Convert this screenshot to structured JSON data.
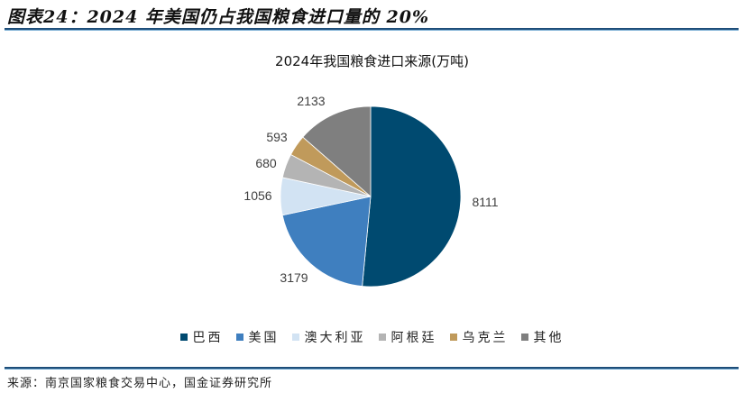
{
  "figure": {
    "title": "图表24：2024 年美国仍占我国粮食进口量的 20%",
    "source": "来源：南京国家粮食交易中心，国金证券研究所"
  },
  "chart_data": {
    "type": "pie",
    "title": "2024年我国粮食进口来源(万吨)",
    "categories": [
      "巴西",
      "美国",
      "澳大利亚",
      "阿根廷",
      "乌克兰",
      "其他"
    ],
    "values": [
      8111,
      3179,
      1056,
      680,
      593,
      2133
    ],
    "colors": [
      "#004a70",
      "#3f7fbf",
      "#d2e3f3",
      "#b4b4b4",
      "#c09a5b",
      "#7f7f7f"
    ],
    "start_angle": "12 o'clock",
    "direction": "clockwise",
    "data_labels": true,
    "legend_position": "bottom"
  }
}
